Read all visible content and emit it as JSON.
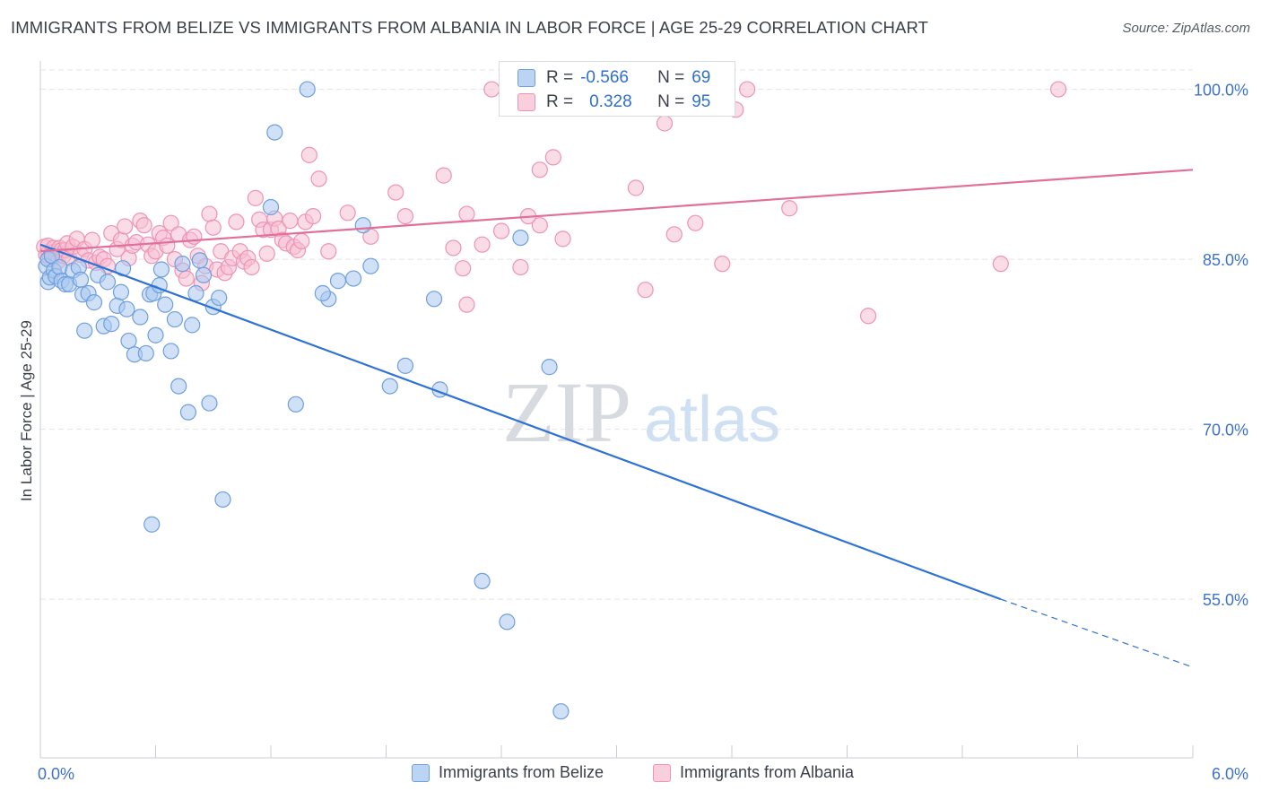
{
  "header": {
    "title": "IMMIGRANTS FROM BELIZE VS IMMIGRANTS FROM ALBANIA IN LABOR FORCE | AGE 25-29 CORRELATION CHART",
    "source": "Source: ZipAtlas.com"
  },
  "watermark": {
    "zip": "ZIP",
    "atlas": "atlas"
  },
  "stats_legend": {
    "belize": {
      "r_label": "R =",
      "r_value": "-0.566",
      "n_label": "N =",
      "n_value": "69"
    },
    "albania": {
      "r_label": "R =",
      "r_value": "0.328",
      "n_label": "N =",
      "n_value": "95"
    }
  },
  "colors": {
    "belize_fill": "#a9c8f0",
    "belize_stroke": "#6f9fdc",
    "belize_line": "#2f72d6",
    "albania_fill": "#f6c0d2",
    "albania_stroke": "#ee93b4",
    "albania_line": "#e0709a",
    "axis_text": "#3d72c9",
    "grid": "#e2e4e8"
  },
  "chart_data": {
    "type": "scatter",
    "title": "IMMIGRANTS FROM BELIZE VS IMMIGRANTS FROM ALBANIA IN LABOR FORCE | AGE 25-29 CORRELATION CHART",
    "xlabel": "",
    "ylabel": "In Labor Force | Age 25-29",
    "xlim": [
      0.0,
      6.0
    ],
    "ylim": [
      41.0,
      102.5
    ],
    "x_tick_labels": [
      "0.0%",
      "6.0%"
    ],
    "y_ticks": [
      55.0,
      70.0,
      85.0,
      100.0
    ],
    "y_tick_labels": [
      "55.0%",
      "70.0%",
      "85.0%",
      "100.0%"
    ],
    "legend": [
      "Immigrants from Belize",
      "Immigrants from Albania"
    ],
    "series": [
      {
        "name": "Immigrants from Belize",
        "r": -0.566,
        "n": 69,
        "trend": {
          "x0": 0.0,
          "y0": 86.3,
          "x1": 5.0,
          "y1": 55.0,
          "dash_to_x": 6.0,
          "dash_to_y": 49.0
        },
        "points": [
          [
            0.03,
            84.4
          ],
          [
            0.04,
            83.0
          ],
          [
            0.04,
            85.0
          ],
          [
            0.05,
            83.4
          ],
          [
            0.06,
            85.3
          ],
          [
            0.07,
            84.0
          ],
          [
            0.08,
            83.5
          ],
          [
            0.1,
            84.3
          ],
          [
            0.11,
            83.1
          ],
          [
            0.13,
            82.8
          ],
          [
            0.15,
            82.8
          ],
          [
            0.17,
            84.0
          ],
          [
            0.2,
            84.3
          ],
          [
            0.21,
            83.2
          ],
          [
            0.22,
            81.9
          ],
          [
            0.23,
            78.7
          ],
          [
            0.25,
            82.0
          ],
          [
            0.28,
            81.2
          ],
          [
            0.3,
            83.6
          ],
          [
            0.33,
            79.1
          ],
          [
            0.35,
            83.0
          ],
          [
            0.37,
            79.3
          ],
          [
            0.4,
            80.9
          ],
          [
            0.42,
            82.1
          ],
          [
            0.43,
            84.2
          ],
          [
            0.45,
            80.6
          ],
          [
            0.46,
            77.8
          ],
          [
            0.49,
            76.6
          ],
          [
            0.52,
            79.9
          ],
          [
            0.55,
            76.7
          ],
          [
            0.57,
            81.9
          ],
          [
            0.59,
            82.0
          ],
          [
            0.6,
            78.3
          ],
          [
            0.62,
            82.7
          ],
          [
            0.63,
            84.1
          ],
          [
            0.65,
            81.0
          ],
          [
            0.68,
            76.9
          ],
          [
            0.7,
            79.7
          ],
          [
            0.72,
            73.8
          ],
          [
            0.74,
            84.6
          ],
          [
            0.77,
            71.5
          ],
          [
            0.79,
            79.2
          ],
          [
            0.81,
            82.0
          ],
          [
            0.83,
            84.9
          ],
          [
            0.85,
            83.6
          ],
          [
            0.88,
            72.3
          ],
          [
            0.9,
            80.8
          ],
          [
            0.93,
            81.6
          ],
          [
            0.95,
            63.8
          ],
          [
            0.58,
            61.6
          ],
          [
            1.2,
            89.6
          ],
          [
            1.39,
            100.0
          ],
          [
            1.5,
            81.5
          ],
          [
            1.47,
            82.0
          ],
          [
            1.55,
            83.1
          ],
          [
            1.63,
            83.3
          ],
          [
            1.68,
            88.0
          ],
          [
            1.72,
            84.4
          ],
          [
            1.9,
            75.6
          ],
          [
            1.82,
            73.8
          ],
          [
            1.22,
            96.2
          ],
          [
            1.33,
            72.2
          ],
          [
            2.05,
            81.5
          ],
          [
            2.08,
            73.5
          ],
          [
            2.5,
            86.9
          ],
          [
            2.65,
            75.5
          ],
          [
            2.3,
            56.6
          ],
          [
            2.43,
            53.0
          ],
          [
            2.71,
            45.1
          ]
        ]
      },
      {
        "name": "Immigrants from Albania",
        "r": 0.328,
        "n": 95,
        "trend": {
          "x0": 0.0,
          "y0": 85.7,
          "x1": 6.0,
          "y1": 92.9
        },
        "points": [
          [
            0.02,
            86.1
          ],
          [
            0.03,
            85.4
          ],
          [
            0.04,
            86.2
          ],
          [
            0.05,
            85.1
          ],
          [
            0.06,
            85.6
          ],
          [
            0.07,
            86.0
          ],
          [
            0.08,
            85.3
          ],
          [
            0.09,
            84.8
          ],
          [
            0.1,
            86.0
          ],
          [
            0.11,
            85.8
          ],
          [
            0.12,
            85.3
          ],
          [
            0.13,
            85.8
          ],
          [
            0.14,
            86.4
          ],
          [
            0.15,
            85.1
          ],
          [
            0.17,
            86.1
          ],
          [
            0.19,
            86.8
          ],
          [
            0.21,
            85.4
          ],
          [
            0.23,
            85.9
          ],
          [
            0.25,
            84.9
          ],
          [
            0.27,
            86.7
          ],
          [
            0.29,
            84.7
          ],
          [
            0.31,
            85.2
          ],
          [
            0.33,
            85.0
          ],
          [
            0.35,
            84.4
          ],
          [
            0.37,
            87.3
          ],
          [
            0.4,
            85.9
          ],
          [
            0.42,
            86.7
          ],
          [
            0.44,
            87.9
          ],
          [
            0.46,
            85.1
          ],
          [
            0.48,
            86.2
          ],
          [
            0.5,
            86.5
          ],
          [
            0.52,
            88.4
          ],
          [
            0.54,
            88.0
          ],
          [
            0.56,
            86.3
          ],
          [
            0.58,
            85.3
          ],
          [
            0.6,
            85.7
          ],
          [
            0.62,
            87.3
          ],
          [
            0.64,
            86.9
          ],
          [
            0.66,
            86.2
          ],
          [
            0.68,
            88.2
          ],
          [
            0.7,
            85.0
          ],
          [
            0.72,
            87.2
          ],
          [
            0.74,
            84.0
          ],
          [
            0.76,
            83.3
          ],
          [
            0.78,
            86.7
          ],
          [
            0.8,
            87.0
          ],
          [
            0.82,
            85.3
          ],
          [
            0.84,
            82.9
          ],
          [
            0.86,
            84.4
          ],
          [
            0.88,
            89.0
          ],
          [
            0.9,
            87.8
          ],
          [
            0.92,
            84.1
          ],
          [
            0.94,
            85.7
          ],
          [
            0.96,
            83.8
          ],
          [
            0.98,
            84.3
          ],
          [
            1.0,
            85.1
          ],
          [
            1.02,
            88.3
          ],
          [
            1.04,
            85.7
          ],
          [
            1.06,
            84.8
          ],
          [
            1.08,
            85.1
          ],
          [
            1.1,
            84.3
          ],
          [
            1.12,
            90.4
          ],
          [
            1.14,
            88.5
          ],
          [
            1.16,
            87.6
          ],
          [
            1.18,
            85.5
          ],
          [
            1.2,
            87.6
          ],
          [
            1.22,
            88.6
          ],
          [
            1.24,
            87.7
          ],
          [
            1.26,
            86.7
          ],
          [
            1.28,
            86.4
          ],
          [
            1.3,
            88.4
          ],
          [
            1.32,
            86.1
          ],
          [
            1.34,
            85.8
          ],
          [
            1.36,
            86.6
          ],
          [
            1.38,
            88.3
          ],
          [
            1.4,
            94.2
          ],
          [
            1.42,
            88.8
          ],
          [
            1.45,
            92.1
          ],
          [
            1.5,
            85.7
          ],
          [
            1.6,
            89.1
          ],
          [
            1.72,
            87.0
          ],
          [
            1.85,
            90.9
          ],
          [
            1.9,
            88.8
          ],
          [
            2.1,
            92.4
          ],
          [
            2.15,
            86.0
          ],
          [
            2.22,
            89.0
          ],
          [
            2.3,
            86.3
          ],
          [
            2.4,
            87.5
          ],
          [
            2.5,
            84.3
          ],
          [
            2.6,
            88.0
          ],
          [
            2.72,
            86.8
          ],
          [
            3.1,
            91.3
          ],
          [
            3.55,
            84.6
          ],
          [
            3.9,
            89.5
          ],
          [
            5.0,
            84.6
          ]
        ],
        "extra_points": [
          [
            2.2,
            84.2
          ],
          [
            2.22,
            81.0
          ],
          [
            2.35,
            100.0
          ],
          [
            2.54,
            88.8
          ],
          [
            2.6,
            92.9
          ],
          [
            2.67,
            94.0
          ],
          [
            3.15,
            82.3
          ],
          [
            3.25,
            97.0
          ],
          [
            3.3,
            87.2
          ],
          [
            3.41,
            88.2
          ],
          [
            3.62,
            98.2
          ],
          [
            3.68,
            100.0
          ],
          [
            4.31,
            80.0
          ],
          [
            5.3,
            100.0
          ]
        ]
      }
    ]
  },
  "bottom_legend": {
    "belize_label": "Immigrants from Belize",
    "albania_label": "Immigrants from Albania"
  }
}
